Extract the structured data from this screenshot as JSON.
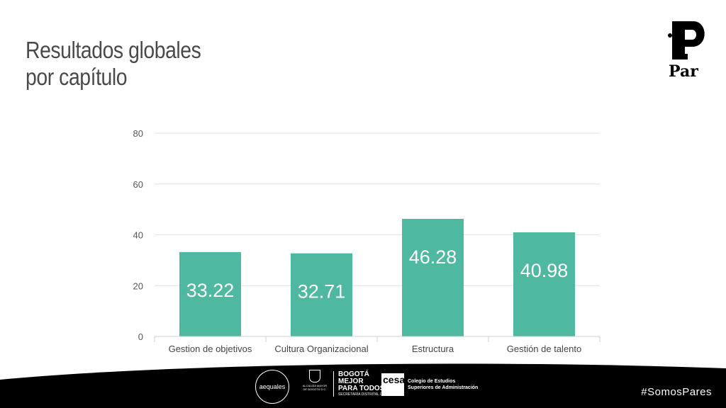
{
  "slide": {
    "title_line1": "Resultados globales",
    "title_line2": "por capítulo"
  },
  "logo": {
    "icon": "par-logo-icon",
    "text": "Par"
  },
  "footer": {
    "hashtag": "#SomosPares",
    "aequales": "aequales",
    "alcaldia": "ALCALDÍA MAYOR DE BOGOTÁ D.C.",
    "bogota_line1": "BOGOTÁ",
    "bogota_line2": "MEJOR",
    "bogota_line3": "PARA TODOS",
    "secretaria": "SECRETARÍA DISTRITAL DE LA MUJER",
    "cesa_mark": "cesa",
    "cesa_line1": "Colegio de Estudios",
    "cesa_line2": "Superiores de Administración",
    "background_color": "#000000"
  },
  "chart_data": {
    "type": "bar",
    "categories": [
      "Gestion de objetivos",
      "Cultura Organizacional",
      "Estructura",
      "Gestión de talento"
    ],
    "values": [
      33.22,
      32.71,
      46.28,
      40.98
    ],
    "data_labels": [
      "33.22",
      "32.71",
      "46.28",
      "40.98"
    ],
    "ylim": [
      0,
      80
    ],
    "yticks": [
      0,
      20,
      40,
      60,
      80
    ],
    "grid": true,
    "legend": "none",
    "bar_color": "#4fb8a1",
    "label_color": "#ffffff"
  }
}
